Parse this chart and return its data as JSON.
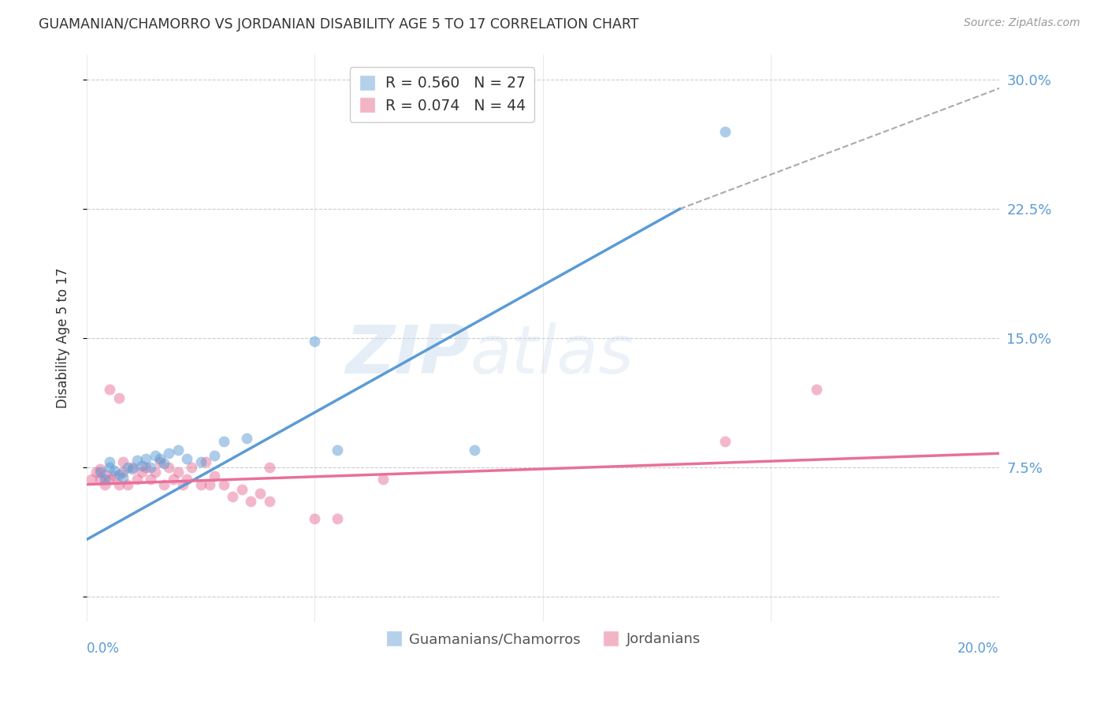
{
  "title": "GUAMANIAN/CHAMORRO VS JORDANIAN DISABILITY AGE 5 TO 17 CORRELATION CHART",
  "source": "Source: ZipAtlas.com",
  "ylabel": "Disability Age 5 to 17",
  "blue_color": "#5b9bd5",
  "pink_color": "#e8709a",
  "dot_alpha": 0.5,
  "dot_size": 100,
  "background_color": "#ffffff",
  "grid_color": "#cccccc",
  "xlim": [
    0.0,
    0.2
  ],
  "ylim": [
    -0.015,
    0.315
  ],
  "yticks": [
    0.0,
    0.075,
    0.15,
    0.225,
    0.3
  ],
  "yticklabels_right": [
    "",
    "7.5%",
    "15.0%",
    "22.5%",
    "30.0%"
  ],
  "blue_scatter_x": [
    0.003,
    0.004,
    0.005,
    0.005,
    0.006,
    0.007,
    0.008,
    0.009,
    0.01,
    0.011,
    0.012,
    0.013,
    0.014,
    0.015,
    0.016,
    0.017,
    0.018,
    0.02,
    0.022,
    0.025,
    0.028,
    0.03,
    0.035,
    0.05,
    0.055,
    0.085,
    0.14
  ],
  "blue_scatter_y": [
    0.072,
    0.068,
    0.075,
    0.078,
    0.073,
    0.071,
    0.069,
    0.075,
    0.074,
    0.079,
    0.076,
    0.08,
    0.075,
    0.082,
    0.08,
    0.077,
    0.083,
    0.085,
    0.08,
    0.078,
    0.082,
    0.09,
    0.092,
    0.148,
    0.085,
    0.085,
    0.27
  ],
  "pink_scatter_x": [
    0.001,
    0.002,
    0.003,
    0.003,
    0.004,
    0.004,
    0.005,
    0.005,
    0.006,
    0.007,
    0.007,
    0.008,
    0.008,
    0.009,
    0.01,
    0.011,
    0.012,
    0.013,
    0.014,
    0.015,
    0.016,
    0.017,
    0.018,
    0.019,
    0.02,
    0.021,
    0.022,
    0.023,
    0.025,
    0.026,
    0.027,
    0.028,
    0.03,
    0.032,
    0.034,
    0.036,
    0.038,
    0.04,
    0.04,
    0.05,
    0.055,
    0.065,
    0.14,
    0.16
  ],
  "pink_scatter_y": [
    0.068,
    0.072,
    0.068,
    0.074,
    0.071,
    0.065,
    0.12,
    0.068,
    0.07,
    0.065,
    0.115,
    0.072,
    0.078,
    0.065,
    0.075,
    0.068,
    0.072,
    0.075,
    0.068,
    0.072,
    0.078,
    0.065,
    0.075,
    0.068,
    0.072,
    0.065,
    0.068,
    0.075,
    0.065,
    0.078,
    0.065,
    0.07,
    0.065,
    0.058,
    0.062,
    0.055,
    0.06,
    0.055,
    0.075,
    0.045,
    0.045,
    0.068,
    0.09,
    0.12
  ],
  "blue_line_x": [
    0.0,
    0.13
  ],
  "blue_line_y": [
    0.033,
    0.225
  ],
  "pink_line_x": [
    0.0,
    0.2
  ],
  "pink_line_y": [
    0.065,
    0.083
  ],
  "dashed_line_x": [
    0.13,
    0.21
  ],
  "dashed_line_y": [
    0.225,
    0.305
  ],
  "watermark_zip": "ZIP",
  "watermark_atlas": "atlas"
}
